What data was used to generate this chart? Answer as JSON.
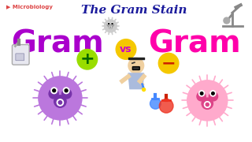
{
  "bg_color": "#ffffff",
  "title": "The Gram Stain",
  "title_color": "#1a1a9c",
  "title_fontsize": 11,
  "brand_text": "▶ Microbiology",
  "brand_color": "#dd4444",
  "gram_left": "Gram",
  "gram_right": "Gram",
  "gram_color_left": "#aa00cc",
  "gram_color_right": "#ff00aa",
  "gram_fontsize": 28,
  "vs_text": "vs",
  "vs_bg": "#f5c800",
  "vs_color": "#cc00cc",
  "plus_bg": "#99dd00",
  "plus_color": "#006600",
  "minus_bg": "#f5c800",
  "minus_color": "#cc2200",
  "bacteria_left_color": "#bb77dd",
  "bacteria_left_dark": "#7733aa",
  "bacteria_right_color": "#ffaacc",
  "bacteria_right_dark": "#dd4488",
  "bacteria_top_color": "#cccccc",
  "person_skin": "#f0d0a0",
  "person_body": "#aabbdd",
  "flask_blue": "#4488ff",
  "flask_red": "#ee3322"
}
